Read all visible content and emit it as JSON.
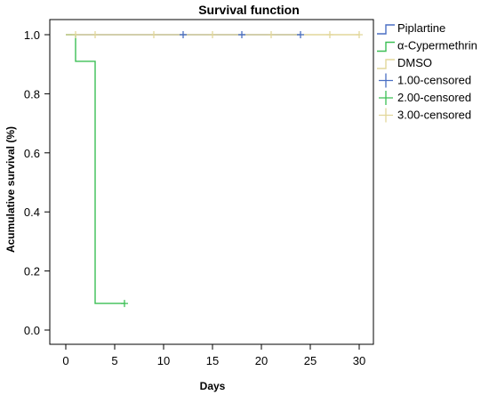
{
  "chart_data": {
    "type": "line",
    "subtype": "kaplan-meier-step",
    "title": "Survival function",
    "xlabel": "Days",
    "ylabel": "Acumulative survival (%)",
    "xlim": [
      0,
      30
    ],
    "ylim": [
      0.0,
      1.0
    ],
    "xticks": [
      "0",
      "5",
      "10",
      "15",
      "20",
      "25",
      "30"
    ],
    "yticks": [
      "0.0",
      "0.2",
      "0.4",
      "0.6",
      "0.8",
      "1.0"
    ],
    "grid": false,
    "legend_position": "right",
    "series": [
      {
        "name": "Piplartine",
        "color": "#4a6fc4",
        "points": [
          [
            0,
            1.0
          ],
          [
            24,
            1.0
          ]
        ]
      },
      {
        "name": "α-Cypermethrin",
        "color": "#3cbf55",
        "points": [
          [
            0,
            1.0
          ],
          [
            1,
            1.0
          ],
          [
            1,
            0.91
          ],
          [
            3,
            0.91
          ],
          [
            3,
            0.09
          ],
          [
            6,
            0.09
          ]
        ]
      },
      {
        "name": "DMSO",
        "color": "#e2d79a",
        "points": [
          [
            0,
            1.0
          ],
          [
            30,
            1.0
          ]
        ]
      }
    ],
    "censored": [
      {
        "name": "1.00-censored",
        "color": "#4a6fc4",
        "points": [
          [
            12,
            1.0
          ],
          [
            18,
            1.0
          ],
          [
            24,
            1.0
          ]
        ]
      },
      {
        "name": "2.00-censored",
        "color": "#3cbf55",
        "points": [
          [
            6,
            0.09
          ]
        ]
      },
      {
        "name": "3.00-censored",
        "color": "#e2d79a",
        "points": [
          [
            1,
            1.0
          ],
          [
            3,
            1.0
          ],
          [
            9,
            1.0
          ],
          [
            15,
            1.0
          ],
          [
            21,
            1.0
          ],
          [
            27,
            1.0
          ],
          [
            30,
            1.0
          ]
        ]
      }
    ]
  }
}
